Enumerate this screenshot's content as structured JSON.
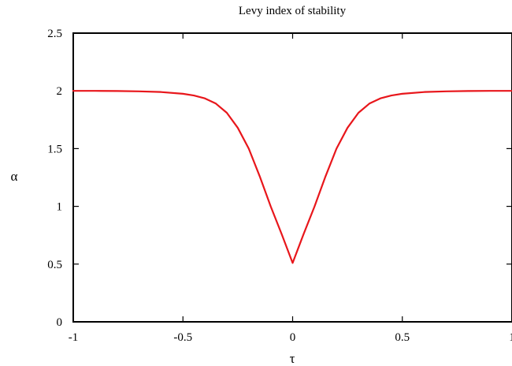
{
  "chart_data": {
    "type": "line",
    "title": "Levy index of stability",
    "xlabel": "τ",
    "ylabel": "α",
    "xlim": [
      -1,
      1
    ],
    "ylim": [
      0,
      2.5
    ],
    "x_ticks": [
      "-1",
      "-0.5",
      "0",
      "0.5",
      "1"
    ],
    "y_ticks": [
      "0",
      "0.5",
      "1",
      "1.5",
      "2",
      "2.5"
    ],
    "grid": false,
    "series": [
      {
        "color": "#e8161b",
        "x": [
          -1,
          -0.9,
          -0.8,
          -0.7,
          -0.6,
          -0.5,
          -0.45,
          -0.4,
          -0.35,
          -0.3,
          -0.25,
          -0.2,
          -0.15,
          -0.1,
          -0.05,
          0,
          0.05,
          0.1,
          0.15,
          0.2,
          0.25,
          0.3,
          0.35,
          0.4,
          0.45,
          0.5,
          0.6,
          0.7,
          0.8,
          0.9,
          1
        ],
        "y": [
          2.0,
          2.0,
          1.999,
          1.996,
          1.99,
          1.975,
          1.96,
          1.935,
          1.89,
          1.81,
          1.68,
          1.5,
          1.26,
          1.0,
          0.76,
          0.51,
          0.76,
          1.0,
          1.26,
          1.5,
          1.68,
          1.81,
          1.89,
          1.935,
          1.96,
          1.975,
          1.99,
          1.996,
          1.999,
          2.0,
          2.0
        ]
      }
    ]
  }
}
